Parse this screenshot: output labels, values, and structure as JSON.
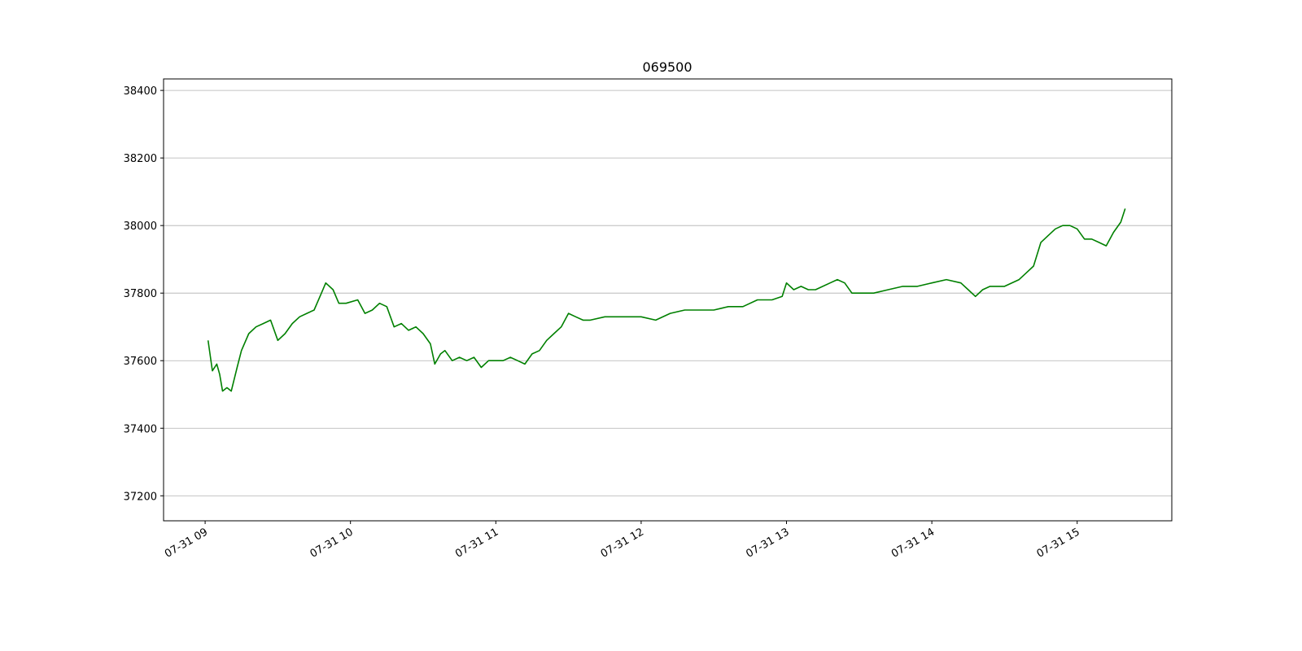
{
  "chart_data": {
    "type": "line",
    "title": "069500",
    "x": [
      9.02,
      9.05,
      9.08,
      9.1,
      9.12,
      9.15,
      9.18,
      9.22,
      9.25,
      9.3,
      9.35,
      9.4,
      9.45,
      9.5,
      9.55,
      9.6,
      9.65,
      9.7,
      9.75,
      9.8,
      9.83,
      9.88,
      9.92,
      9.97,
      10.05,
      10.1,
      10.15,
      10.2,
      10.25,
      10.3,
      10.35,
      10.4,
      10.45,
      10.5,
      10.55,
      10.58,
      10.62,
      10.65,
      10.7,
      10.75,
      10.8,
      10.85,
      10.9,
      10.95,
      11.0,
      11.05,
      11.1,
      11.15,
      11.2,
      11.25,
      11.3,
      11.35,
      11.4,
      11.45,
      11.5,
      11.55,
      11.6,
      11.65,
      11.75,
      11.9,
      12.0,
      12.1,
      12.2,
      12.3,
      12.4,
      12.5,
      12.6,
      12.7,
      12.8,
      12.9,
      12.97,
      13.0,
      13.05,
      13.1,
      13.15,
      13.2,
      13.3,
      13.35,
      13.4,
      13.45,
      13.5,
      13.6,
      13.7,
      13.8,
      13.9,
      14.0,
      14.1,
      14.2,
      14.25,
      14.3,
      14.35,
      14.4,
      14.5,
      14.6,
      14.65,
      14.7,
      14.75,
      14.8,
      14.85,
      14.9,
      14.95,
      15.0,
      15.05,
      15.1,
      15.15,
      15.2,
      15.25,
      15.3,
      15.33
    ],
    "series": [
      {
        "color": "#008000",
        "values": [
          37660,
          37570,
          37590,
          37560,
          37510,
          37520,
          37510,
          37580,
          37630,
          37680,
          37700,
          37710,
          37720,
          37660,
          37680,
          37710,
          37730,
          37740,
          37750,
          37800,
          37830,
          37810,
          37770,
          37770,
          37780,
          37740,
          37750,
          37770,
          37760,
          37700,
          37710,
          37690,
          37700,
          37680,
          37650,
          37590,
          37620,
          37630,
          37600,
          37610,
          37600,
          37610,
          37580,
          37600,
          37600,
          37600,
          37610,
          37600,
          37590,
          37620,
          37630,
          37660,
          37680,
          37700,
          37740,
          37730,
          37720,
          37720,
          37730,
          37730,
          37730,
          37720,
          37740,
          37750,
          37750,
          37750,
          37760,
          37760,
          37780,
          37780,
          37790,
          37830,
          37810,
          37820,
          37810,
          37810,
          37830,
          37840,
          37830,
          37800,
          37800,
          37800,
          37810,
          37820,
          37820,
          37830,
          37840,
          37830,
          37810,
          37790,
          37810,
          37820,
          37820,
          37840,
          37860,
          37880,
          37950,
          37970,
          37990,
          38000,
          38000,
          37990,
          37960,
          37960,
          37950,
          37940,
          37980,
          38010,
          38050
        ]
      }
    ],
    "xlim": [
      8.714,
      15.651
    ],
    "xticks": [
      {
        "value": 9,
        "label": "07-31 09"
      },
      {
        "value": 10,
        "label": "07-31 10"
      },
      {
        "value": 11,
        "label": "07-31 11"
      },
      {
        "value": 12,
        "label": "07-31 12"
      },
      {
        "value": 13,
        "label": "07-31 13"
      },
      {
        "value": 14,
        "label": "07-31 14"
      },
      {
        "value": 15,
        "label": "07-31 15"
      }
    ],
    "ylim": [
      37126,
      38434
    ],
    "yticks": [
      37200,
      37400,
      37600,
      37800,
      38000,
      38200,
      38400
    ],
    "grid": true
  }
}
